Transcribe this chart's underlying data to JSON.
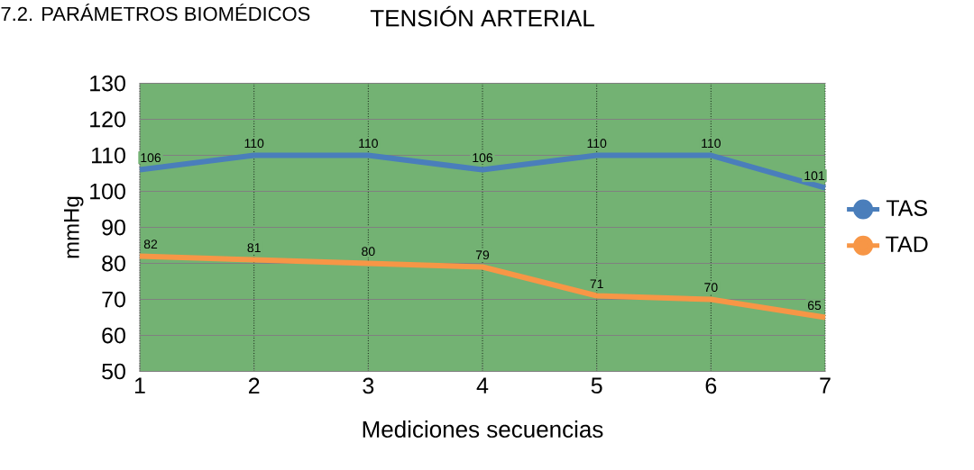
{
  "chart_data": {
    "type": "line",
    "title": "TENSIÓN ARTERIAL",
    "xlabel": "Mediciones secuencias",
    "ylabel": "mmHg",
    "annotations": [
      "7.2. PARÁMETROS BIOMÉDICOS"
    ],
    "x": [
      1,
      2,
      3,
      4,
      5,
      6,
      7
    ],
    "xlim": [
      1,
      7
    ],
    "xticks": [
      1,
      2,
      3,
      4,
      5,
      6,
      7
    ],
    "ylim": [
      50,
      130
    ],
    "yticks": [
      50,
      60,
      70,
      80,
      90,
      100,
      110,
      120,
      130
    ],
    "series": [
      {
        "name": "TAS",
        "color": "#4a7ebb",
        "values": [
          106,
          110,
          110,
          106,
          110,
          110,
          101
        ]
      },
      {
        "name": "TAD",
        "color": "#f79646",
        "values": [
          82,
          81,
          80,
          79,
          71,
          70,
          65
        ]
      }
    ],
    "grid": true,
    "legend": "right",
    "marker": "none",
    "line_style": "solid",
    "data_labels": true
  }
}
